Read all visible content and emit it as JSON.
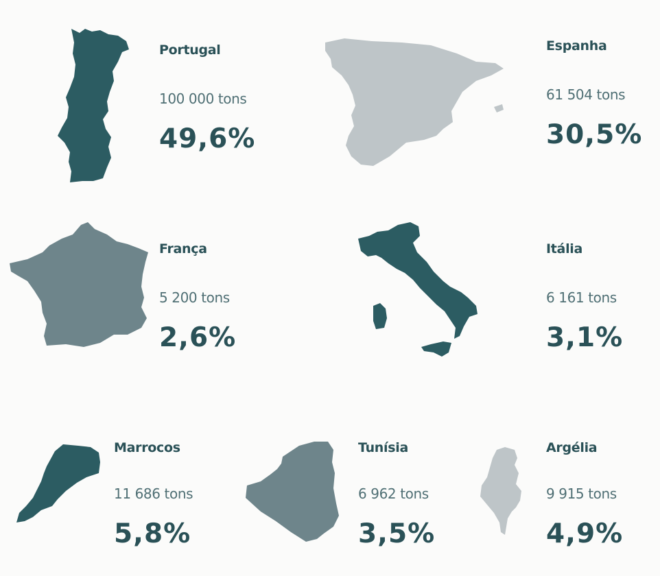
{
  "colors": {
    "dark_teal": "#2c5c62",
    "mid_gray": "#6e858b",
    "light_gray": "#bec5c8",
    "text": "#2a5157",
    "background": "#fbfbfa"
  },
  "countries": [
    {
      "name": "Portugal",
      "amount": "100 000 tons",
      "percent": "49,6%",
      "map_icon": "portugal-map-icon",
      "map_color": "dark_teal"
    },
    {
      "name": "Espanha",
      "amount": "61 504 tons",
      "percent": "30,5%",
      "map_icon": "spain-map-icon",
      "map_color": "light_gray"
    },
    {
      "name": "França",
      "amount": "5 200 tons",
      "percent": "2,6%",
      "map_icon": "france-map-icon",
      "map_color": "mid_gray"
    },
    {
      "name": "Itália",
      "amount": "6 161 tons",
      "percent": "3,1%",
      "map_icon": "italy-map-icon",
      "map_color": "dark_teal"
    },
    {
      "name": "Marrocos",
      "amount": "11 686 tons",
      "percent": "5,8%",
      "map_icon": "morocco-map-icon",
      "map_color": "dark_teal"
    },
    {
      "name": "Tunísia",
      "amount": "6 962 tons",
      "percent": "3,5%",
      "map_icon": "algeria-map-icon",
      "map_color": "mid_gray"
    },
    {
      "name": "Argélia",
      "amount": "9 915 tons",
      "percent": "4,9%",
      "map_icon": "tunisia-map-icon",
      "map_color": "light_gray"
    }
  ]
}
